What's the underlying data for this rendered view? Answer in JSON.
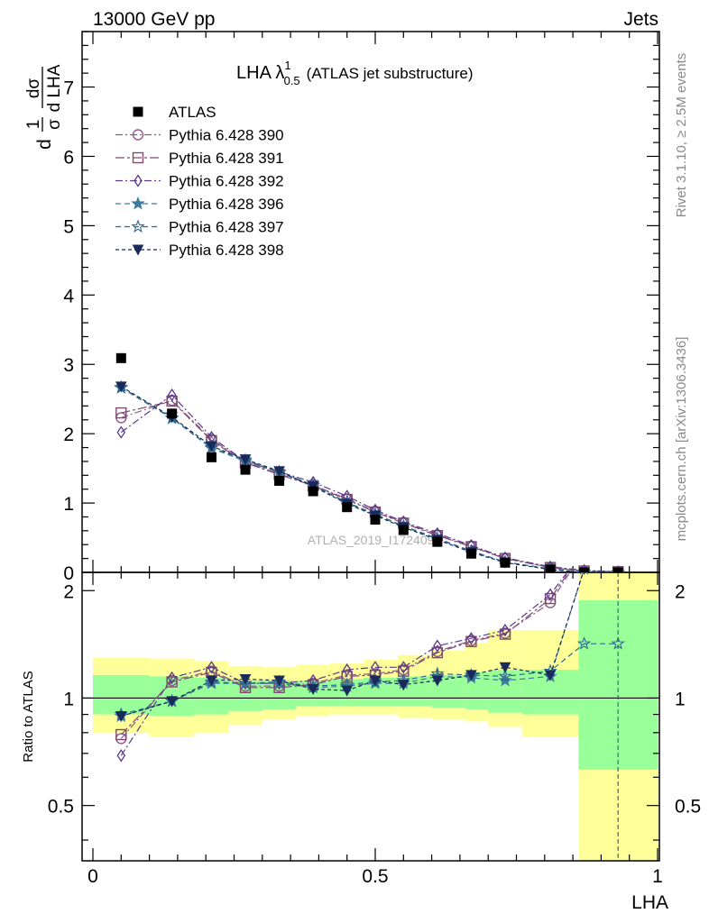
{
  "header": {
    "left": "13000 GeV pp",
    "right": "Jets"
  },
  "side_labels": {
    "top": "Rivet 3.1.10, ≥ 2.5M events",
    "bottom": "mcplots.cern.ch [arXiv:1306.3436]"
  },
  "watermark": "ATLAS_2019_I1724098",
  "chart_data": {
    "type": "scatter",
    "title": {
      "main": "LHA λ",
      "sup": "1",
      "sub": "0.5",
      "suffix": "(ATLAS jet substructure)"
    },
    "xlabel": "LHA",
    "ylabel": {
      "num1": "1",
      "den1": "σ",
      "num2": "dσ",
      "den2": "d LHA",
      "prefix": "d"
    },
    "ratio_ylabel": "Ratio to ATLAS",
    "xlim": [
      0,
      1
    ],
    "ylim": [
      0,
      7.8
    ],
    "ratio_ylim": [
      0.35,
      2.25
    ],
    "x_ticks": [
      0,
      0.5,
      1
    ],
    "x_tick_labels": [
      "0",
      "0.5",
      "1"
    ],
    "y_ticks": [
      0,
      1,
      2,
      3,
      4,
      5,
      6,
      7
    ],
    "y_tick_labels": [
      "0",
      "1",
      "2",
      "3",
      "4",
      "5",
      "6",
      "7"
    ],
    "ratio_ticks": [
      0.5,
      1,
      2
    ],
    "ratio_tick_labels": [
      "0.5",
      "1",
      "2"
    ],
    "legend_position": "top-left",
    "x": [
      0.05,
      0.14,
      0.21,
      0.27,
      0.33,
      0.39,
      0.45,
      0.5,
      0.55,
      0.61,
      0.67,
      0.73,
      0.81,
      0.87,
      0.93
    ],
    "ratio_band_edges": [
      0,
      0.1,
      0.18,
      0.24,
      0.3,
      0.36,
      0.42,
      0.48,
      0.54,
      0.6,
      0.66,
      0.7,
      0.76,
      0.86,
      1.0
    ],
    "ratio_band_inner": [
      [
        0.9,
        1.16
      ],
      [
        0.89,
        1.15
      ],
      [
        0.9,
        1.14
      ],
      [
        0.92,
        1.12
      ],
      [
        0.93,
        1.12
      ],
      [
        0.95,
        1.12
      ],
      [
        0.95,
        1.13
      ],
      [
        0.95,
        1.14
      ],
      [
        0.95,
        1.15
      ],
      [
        0.94,
        1.16
      ],
      [
        0.93,
        1.18
      ],
      [
        0.91,
        1.2
      ],
      [
        0.9,
        1.2
      ],
      [
        0.63,
        1.88
      ]
    ],
    "ratio_band_outer": [
      [
        0.8,
        1.3
      ],
      [
        0.78,
        1.29
      ],
      [
        0.8,
        1.27
      ],
      [
        0.84,
        1.23
      ],
      [
        0.87,
        1.22
      ],
      [
        0.89,
        1.24
      ],
      [
        0.9,
        1.25
      ],
      [
        0.9,
        1.28
      ],
      [
        0.88,
        1.32
      ],
      [
        0.87,
        1.36
      ],
      [
        0.86,
        1.43
      ],
      [
        0.83,
        1.55
      ],
      [
        0.78,
        1.55
      ],
      [
        0.2,
        2.5
      ]
    ],
    "data_series": {
      "name": "ATLAS",
      "y": [
        3.09,
        2.29,
        1.66,
        1.48,
        1.32,
        1.17,
        0.94,
        0.76,
        0.61,
        0.44,
        0.27,
        0.14,
        0.04,
        0.0,
        0.0
      ]
    },
    "series": [
      {
        "name": "Pythia 6.428 390",
        "color": "#8c5a8c",
        "marker": "circle-open",
        "dash": "8,3,2,3",
        "y": [
          2.23,
          2.48,
          1.92,
          1.59,
          1.42,
          1.26,
          1.06,
          0.88,
          0.72,
          0.54,
          0.38,
          0.2,
          0.07,
          0.02,
          0.01
        ],
        "ratio": [
          0.77,
          1.12,
          1.19,
          1.08,
          1.08,
          1.1,
          1.16,
          1.17,
          1.2,
          1.35,
          1.45,
          1.52,
          1.85,
          2.6,
          3.0
        ]
      },
      {
        "name": "Pythia 6.428 391",
        "color": "#7c4a6a",
        "marker": "square-open",
        "dash": "10,3,3,3",
        "y": [
          2.3,
          2.47,
          1.9,
          1.58,
          1.41,
          1.25,
          1.05,
          0.87,
          0.71,
          0.53,
          0.37,
          0.2,
          0.07,
          0.02,
          0.01
        ],
        "ratio": [
          0.79,
          1.11,
          1.18,
          1.07,
          1.07,
          1.09,
          1.15,
          1.16,
          1.19,
          1.34,
          1.44,
          1.51,
          1.9,
          2.6,
          3.0
        ]
      },
      {
        "name": "Pythia 6.428 392",
        "color": "#5a3a8c",
        "marker": "diamond-open",
        "dash": "8,3,2,3",
        "y": [
          2.02,
          2.56,
          1.95,
          1.6,
          1.45,
          1.3,
          1.1,
          0.9,
          0.73,
          0.56,
          0.39,
          0.21,
          0.08,
          0.03,
          0.01
        ],
        "ratio": [
          0.69,
          1.14,
          1.22,
          1.1,
          1.1,
          1.12,
          1.2,
          1.22,
          1.22,
          1.4,
          1.47,
          1.55,
          1.95,
          2.6,
          3.0
        ]
      },
      {
        "name": "Pythia 6.428 396",
        "color": "#3f7a9c",
        "marker": "star-filled",
        "dash": "6,4",
        "y": [
          2.66,
          2.22,
          1.79,
          1.6,
          1.44,
          1.25,
          1.0,
          0.83,
          0.66,
          0.48,
          0.3,
          0.15,
          0.05,
          0.0,
          0.0
        ],
        "ratio": [
          0.89,
          0.98,
          1.1,
          1.1,
          1.1,
          1.07,
          1.08,
          1.1,
          1.1,
          1.15,
          1.14,
          1.12,
          1.15,
          2.3,
          3.0
        ]
      },
      {
        "name": "Pythia 6.428 397",
        "color": "#2f6a8c",
        "marker": "star-open",
        "dash": "6,4",
        "y": [
          2.67,
          2.23,
          1.8,
          1.62,
          1.45,
          1.26,
          1.01,
          0.84,
          0.67,
          0.49,
          0.31,
          0.15,
          0.05,
          0.0,
          0.0
        ],
        "ratio": [
          0.9,
          0.98,
          1.11,
          1.1,
          1.11,
          1.08,
          1.09,
          1.11,
          1.12,
          1.17,
          1.16,
          1.15,
          1.19,
          1.42,
          1.42
        ]
      },
      {
        "name": "Pythia 6.428 398",
        "color": "#1a2a5a",
        "marker": "triangle-down-filled",
        "dash": "4,3",
        "y": [
          2.68,
          2.24,
          1.82,
          1.63,
          1.46,
          1.24,
          0.99,
          0.82,
          0.65,
          0.47,
          0.29,
          0.14,
          0.04,
          0.0,
          0.0
        ],
        "ratio": [
          0.89,
          0.98,
          1.12,
          1.13,
          1.12,
          1.06,
          1.05,
          1.12,
          1.09,
          1.12,
          1.16,
          1.22,
          1.16,
          2.3,
          3.0
        ]
      }
    ]
  }
}
